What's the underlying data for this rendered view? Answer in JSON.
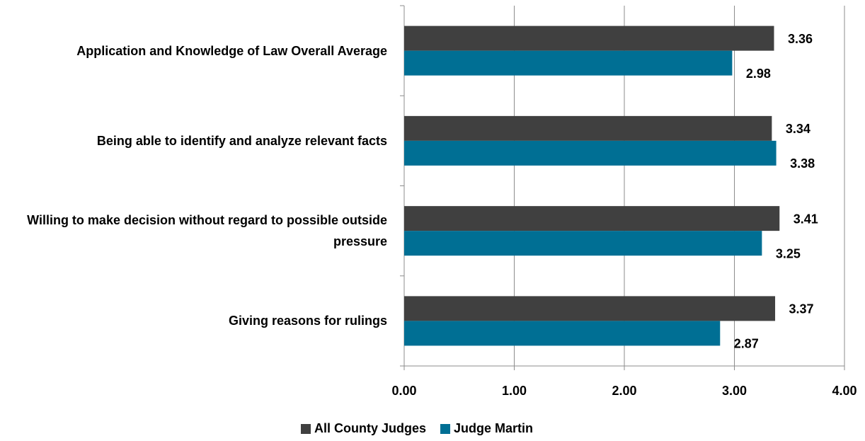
{
  "chart_data": {
    "type": "barh",
    "categories": [
      "Application and Knowledge of Law Overall Average",
      "Being able to identify and analyze relevant facts",
      "Willing to make decision without regard to possible outside pressure",
      "Giving reasons for rulings"
    ],
    "series": [
      {
        "name": "All County Judges",
        "color": "#404040",
        "values": [
          3.36,
          3.34,
          3.41,
          3.37
        ]
      },
      {
        "name": "Judge Martin",
        "color": "#006f94",
        "values": [
          2.98,
          3.38,
          3.25,
          2.87
        ]
      }
    ],
    "xlim": [
      0,
      4
    ],
    "xticks": [
      {
        "value": 0,
        "label": "0.00"
      },
      {
        "value": 1,
        "label": "1.00"
      },
      {
        "value": 2,
        "label": "2.00"
      },
      {
        "value": 3,
        "label": "3.00"
      },
      {
        "value": 4,
        "label": "4.00"
      }
    ],
    "grid": true,
    "legend": "bottom"
  }
}
